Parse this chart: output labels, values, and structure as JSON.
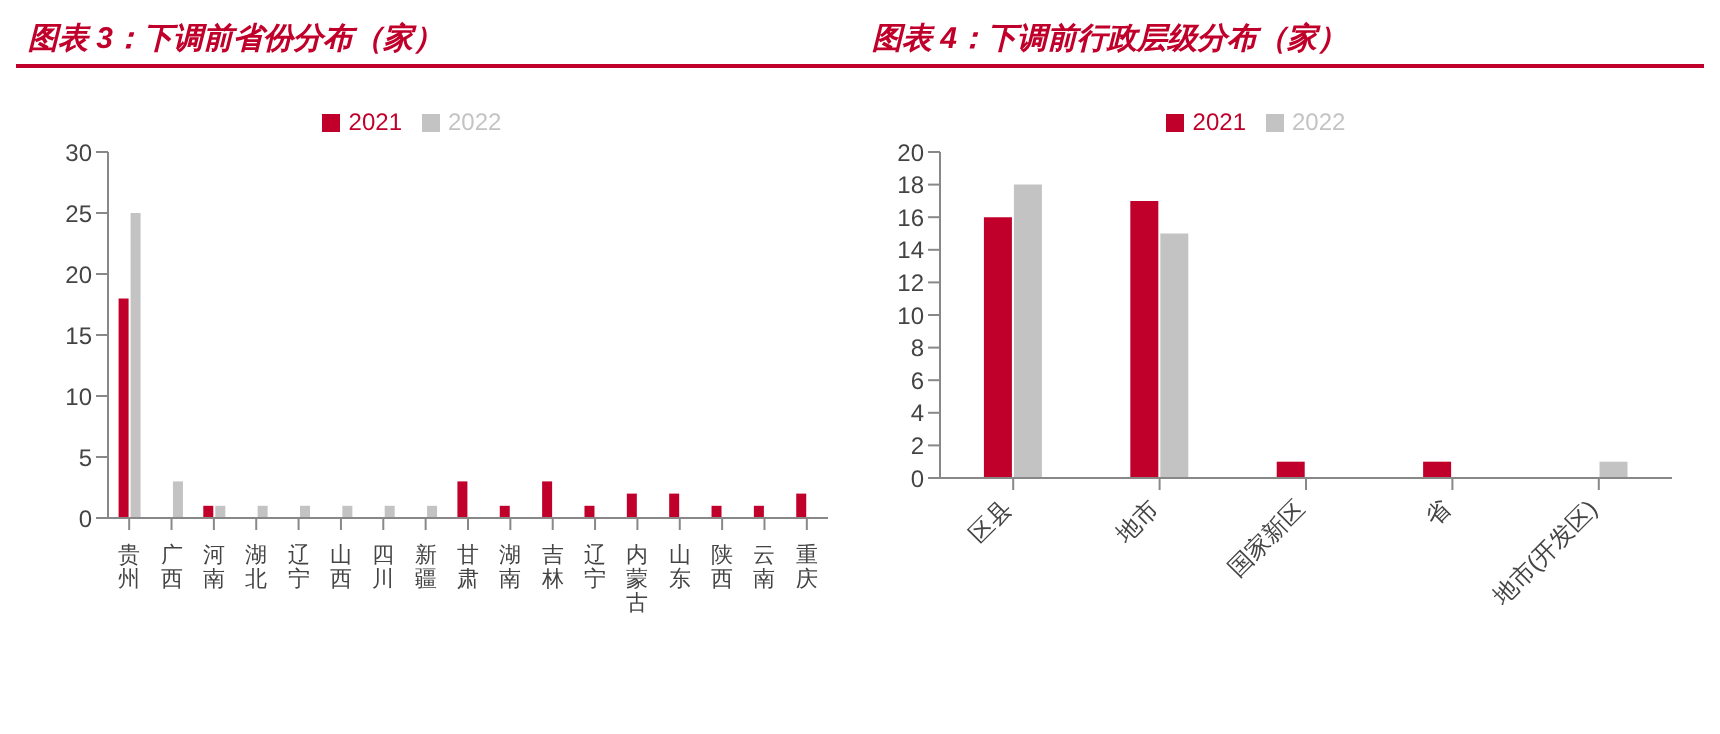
{
  "chart_data": [
    {
      "type": "bar",
      "title": "图表 3：下调前省份分布（家）",
      "categories": [
        "贵州",
        "广西",
        "河南",
        "湖北",
        "辽宁",
        "山西",
        "四川",
        "新疆",
        "甘肃",
        "湖南",
        "吉林",
        "辽宁",
        "内蒙古",
        "山东",
        "陕西",
        "云南",
        "重庆"
      ],
      "series": [
        {
          "name": "2021",
          "color": "#c0002a",
          "values": [
            18,
            0,
            1,
            0,
            0,
            0,
            0,
            0,
            3,
            1,
            3,
            1,
            2,
            2,
            1,
            1,
            2
          ]
        },
        {
          "name": "2022",
          "color": "#c3c3c3",
          "values": [
            25,
            3,
            1,
            1,
            1,
            1,
            1,
            1,
            0,
            0,
            0,
            0,
            0,
            0,
            0,
            0,
            0
          ]
        }
      ],
      "ylim": [
        0,
        30
      ],
      "yticks": [
        0,
        5,
        10,
        15,
        20,
        25,
        30
      ],
      "legend": "top"
    },
    {
      "type": "bar",
      "title": "图表 4：下调前行政层级分布（家）",
      "categories": [
        "区县",
        "地市",
        "国家新区",
        "省",
        "地市(开发区)"
      ],
      "series": [
        {
          "name": "2021",
          "color": "#c0002a",
          "values": [
            16,
            17,
            1,
            1,
            0
          ]
        },
        {
          "name": "2022",
          "color": "#c3c3c3",
          "values": [
            18,
            15,
            0,
            0,
            1
          ]
        }
      ],
      "ylim": [
        0,
        20
      ],
      "yticks": [
        0,
        2,
        4,
        6,
        8,
        10,
        12,
        14,
        16,
        18,
        20
      ],
      "legend": "top"
    }
  ]
}
